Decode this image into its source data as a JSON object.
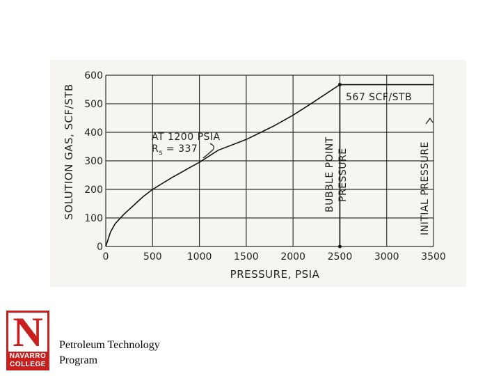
{
  "chart_data": {
    "type": "line",
    "xlabel": "PRESSURE, PSIA",
    "ylabel": "SOLUTION GAS, SCF/STB",
    "xlim": [
      0,
      3500
    ],
    "ylim": [
      0,
      600
    ],
    "x_ticks": [
      "0",
      "500",
      "1000",
      "1500",
      "2000",
      "2500",
      "3000",
      "3500"
    ],
    "y_ticks": [
      "0",
      "100",
      "200",
      "300",
      "400",
      "500",
      "600"
    ],
    "grid": true,
    "series": [
      {
        "x": [
          0,
          50,
          100,
          200,
          300,
          400,
          500,
          700,
          900,
          1000,
          1200,
          1500,
          1800,
          2000,
          2200,
          2500
        ],
        "y": [
          0,
          50,
          80,
          115,
          145,
          175,
          200,
          240,
          277,
          295,
          337,
          375,
          423,
          460,
          502,
          567
        ]
      }
    ],
    "annotations": {
      "rs_line1": "AT 1200 PSIA",
      "rs_line2_prefix": "R",
      "rs_line2_sub": "s",
      "rs_line2_suffix": " = 337",
      "rs_point": {
        "x": 1200,
        "y": 337
      },
      "bubble_label": "567 SCF/STB",
      "bubble_point": {
        "x": 2500,
        "y": 567
      },
      "bubble_line1": "BUBBLE POINT",
      "bubble_line2": "PRESSURE",
      "initial_label": "INITIAL PRESSURE",
      "initial_pressure": 3500
    }
  },
  "logo": {
    "letter": "N",
    "word1": "NAVARRO",
    "word2": "COLLEGE"
  },
  "footer": {
    "line1": "Petroleum Technology",
    "line2": "Program"
  }
}
